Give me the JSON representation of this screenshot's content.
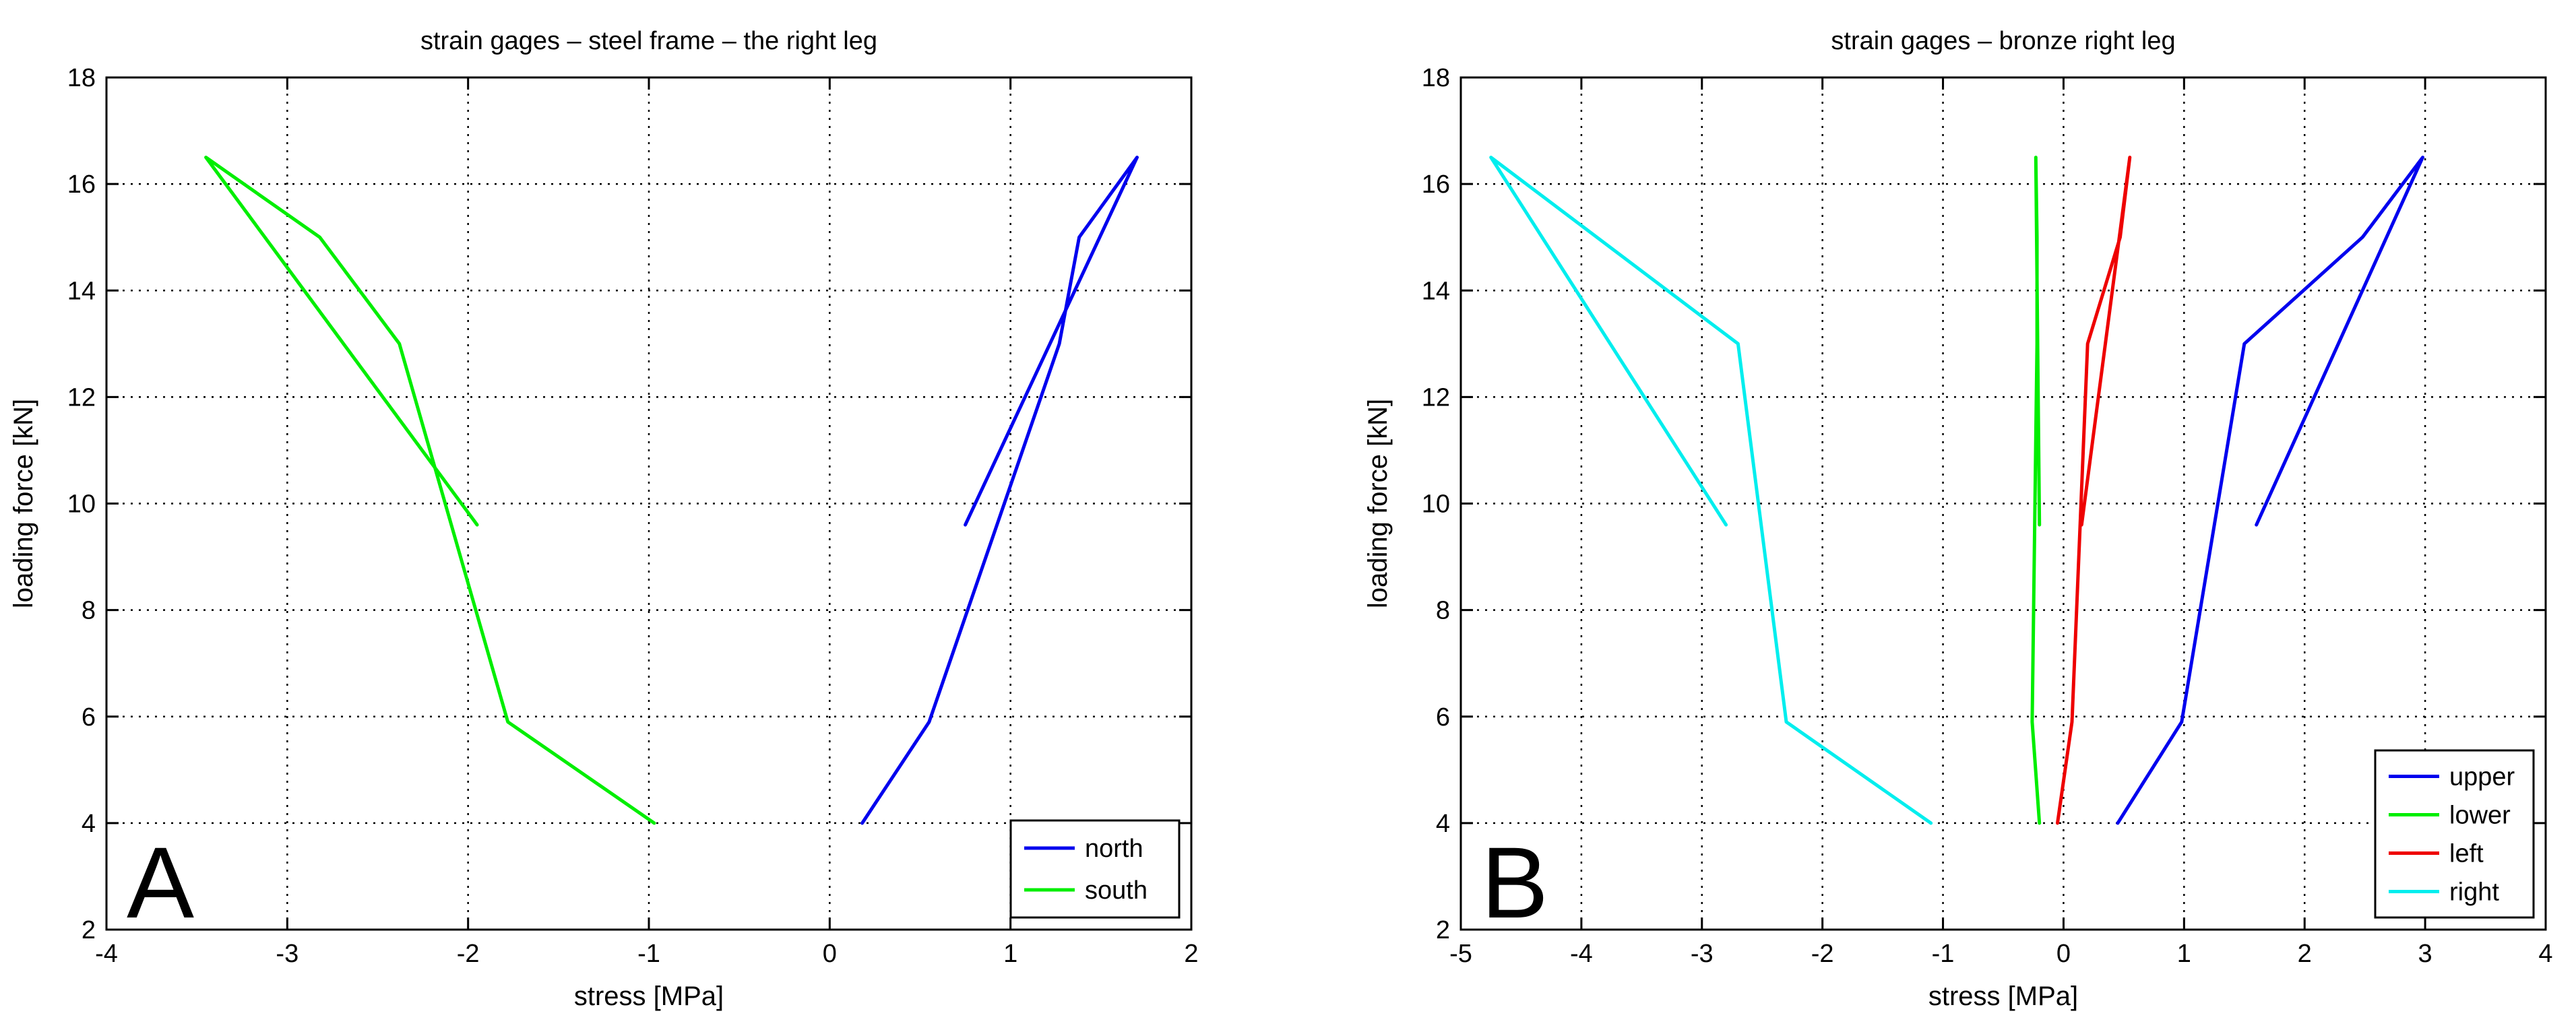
{
  "chart_data": [
    {
      "type": "line",
      "panel_label": "A",
      "title": "strain gages – steel frame – the right leg",
      "xlabel": "stress [MPa]",
      "ylabel": "loading force [kN]",
      "xlim": [
        -4,
        2
      ],
      "ylim": [
        2,
        18
      ],
      "xticks": [
        -4,
        -3,
        -2,
        -1,
        0,
        1,
        2
      ],
      "yticks": [
        2,
        4,
        6,
        8,
        10,
        12,
        14,
        16,
        18
      ],
      "grid": true,
      "legend_position": "bottom-right",
      "series": [
        {
          "name": "north",
          "color": "#0000ee",
          "points": [
            [
              0.18,
              4.0
            ],
            [
              0.55,
              5.9
            ],
            [
              1.27,
              13.0
            ],
            [
              1.38,
              15.0
            ],
            [
              1.7,
              16.5
            ],
            [
              0.75,
              9.6
            ]
          ]
        },
        {
          "name": "south",
          "color": "#00ee00",
          "points": [
            [
              -0.97,
              4.0
            ],
            [
              -1.78,
              5.9
            ],
            [
              -2.38,
              13.0
            ],
            [
              -2.82,
              15.0
            ],
            [
              -3.45,
              16.5
            ],
            [
              -1.95,
              9.6
            ]
          ]
        }
      ]
    },
    {
      "type": "line",
      "panel_label": "B",
      "title": "strain gages – bronze right leg",
      "xlabel": "stress [MPa]",
      "ylabel": "loading force [kN]",
      "xlim": [
        -5,
        4
      ],
      "ylim": [
        2,
        18
      ],
      "xticks": [
        -5,
        -4,
        -3,
        -2,
        -1,
        0,
        1,
        2,
        3,
        4
      ],
      "yticks": [
        2,
        4,
        6,
        8,
        10,
        12,
        14,
        16,
        18
      ],
      "grid": true,
      "legend_position": "bottom-right",
      "series": [
        {
          "name": "upper",
          "color": "#0000ee",
          "points": [
            [
              0.45,
              4.0
            ],
            [
              0.98,
              5.9
            ],
            [
              1.5,
              13.0
            ],
            [
              2.48,
              15.0
            ],
            [
              2.98,
              16.5
            ],
            [
              1.6,
              9.6
            ]
          ]
        },
        {
          "name": "lower",
          "color": "#00ee00",
          "points": [
            [
              -0.2,
              4.0
            ],
            [
              -0.26,
              5.9
            ],
            [
              -0.22,
              13.0
            ],
            [
              -0.22,
              15.0
            ],
            [
              -0.23,
              16.5
            ],
            [
              -0.2,
              9.6
            ]
          ]
        },
        {
          "name": "left",
          "color": "#ee0000",
          "points": [
            [
              -0.05,
              4.0
            ],
            [
              0.07,
              5.9
            ],
            [
              0.2,
              13.0
            ],
            [
              0.47,
              15.0
            ],
            [
              0.55,
              16.5
            ],
            [
              0.15,
              9.6
            ]
          ]
        },
        {
          "name": "right",
          "color": "#00eeee",
          "points": [
            [
              -1.1,
              4.0
            ],
            [
              -2.3,
              5.9
            ],
            [
              -2.7,
              13.0
            ],
            [
              -4.75,
              16.5
            ],
            [
              -2.8,
              9.6
            ]
          ]
        }
      ]
    }
  ]
}
